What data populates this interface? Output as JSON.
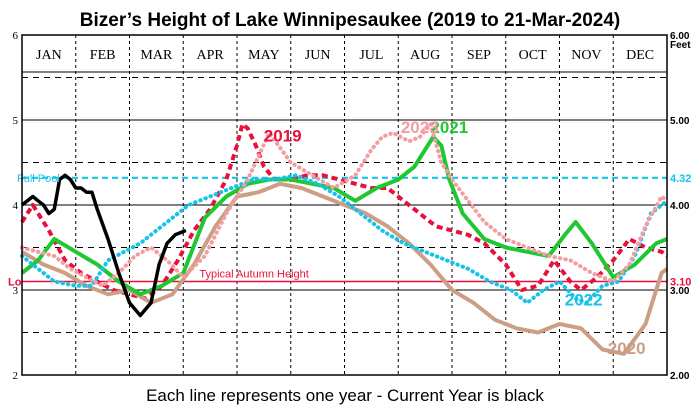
{
  "chart_data": {
    "type": "line",
    "title": "Bizer’s Height of Lake Winnipesaukee (2019  to  21-Mar-2024)",
    "caption": "Each line represents one year - Current Year is black",
    "unit_label": "Feet",
    "months": [
      "JAN",
      "FEB",
      "MAR",
      "APR",
      "MAY",
      "JUN",
      "JUL",
      "AUG",
      "SEP",
      "OCT",
      "NOV",
      "DEC"
    ],
    "x_range": [
      0,
      12
    ],
    "ylim": [
      2,
      6
    ],
    "y_ticks_left": [
      "2",
      "3",
      "4",
      "5",
      "6"
    ],
    "y_ticks_right": [
      "2.00",
      "3.00",
      "4.00",
      "5.00",
      "6.00"
    ],
    "reference_lines": [
      {
        "id": "full",
        "label": "Full Pool",
        "value": 4.32,
        "value_label": "4.32",
        "color": "#16c3e8",
        "style": "dashed"
      },
      {
        "id": "low",
        "label": "Typical Autumn Height",
        "value": 3.1,
        "value_label": "3.10",
        "color": "#e8103c",
        "style": "solid",
        "left_label": "Lo"
      }
    ],
    "series": [
      {
        "name": "2019",
        "color": "#e8103c",
        "style": "dashed",
        "label_at": [
          4.85,
          4.75
        ],
        "x": [
          0,
          0.2,
          0.5,
          0.8,
          1.1,
          1.4,
          1.7,
          2.0,
          2.3,
          2.6,
          2.9,
          3.2,
          3.5,
          3.8,
          4.0,
          4.1,
          4.2,
          4.35,
          4.5,
          4.7,
          5.0,
          5.3,
          5.6,
          5.9,
          6.2,
          6.5,
          6.8,
          7.1,
          7.4,
          7.7,
          8.0,
          8.3,
          8.6,
          9.0,
          9.3,
          9.6,
          9.9,
          10.2,
          10.4,
          10.7,
          11.0,
          11.3,
          11.6,
          11.9,
          12.0
        ],
        "y": [
          3.8,
          4.0,
          3.7,
          3.35,
          3.2,
          3.1,
          3.0,
          2.95,
          2.9,
          3.05,
          3.35,
          3.7,
          3.95,
          4.3,
          4.7,
          4.95,
          4.9,
          4.7,
          4.45,
          4.3,
          4.3,
          4.35,
          4.35,
          4.3,
          4.25,
          4.2,
          4.2,
          4.05,
          3.9,
          3.75,
          3.7,
          3.65,
          3.55,
          3.3,
          3.0,
          3.05,
          3.35,
          3.1,
          3.0,
          3.15,
          3.35,
          3.6,
          3.5,
          3.45,
          3.4
        ]
      },
      {
        "name": "2020",
        "color": "#cc9f85",
        "style": "solid",
        "label_at": [
          11.25,
          2.25
        ],
        "x": [
          0,
          0.4,
          0.8,
          1.2,
          1.6,
          2.0,
          2.4,
          2.8,
          3.2,
          3.6,
          4.0,
          4.4,
          4.8,
          5.2,
          5.6,
          6.0,
          6.4,
          6.8,
          7.2,
          7.6,
          8.0,
          8.4,
          8.8,
          9.2,
          9.6,
          10.0,
          10.4,
          10.8,
          11.2,
          11.6,
          11.9,
          12.0
        ],
        "y": [
          3.45,
          3.3,
          3.2,
          3.05,
          2.95,
          3.0,
          2.85,
          2.95,
          3.3,
          3.75,
          4.1,
          4.15,
          4.25,
          4.2,
          4.1,
          4.0,
          3.9,
          3.75,
          3.55,
          3.3,
          3.0,
          2.85,
          2.65,
          2.55,
          2.5,
          2.6,
          2.55,
          2.3,
          2.25,
          2.6,
          3.2,
          3.25
        ]
      },
      {
        "name": "2021",
        "color": "#1fc832",
        "style": "solid",
        "label_at": [
          7.95,
          4.85
        ],
        "x": [
          0,
          0.3,
          0.6,
          1.0,
          1.4,
          1.8,
          2.2,
          2.6,
          3.0,
          3.4,
          3.8,
          4.2,
          4.6,
          5.0,
          5.4,
          5.8,
          6.2,
          6.6,
          7.0,
          7.3,
          7.5,
          7.65,
          7.8,
          7.95,
          8.2,
          8.6,
          9.0,
          9.4,
          9.8,
          10.1,
          10.3,
          10.6,
          11.0,
          11.4,
          11.8,
          12.0
        ],
        "y": [
          3.2,
          3.35,
          3.6,
          3.45,
          3.3,
          3.1,
          2.95,
          3.05,
          3.2,
          3.85,
          4.1,
          4.25,
          4.3,
          4.3,
          4.25,
          4.2,
          4.05,
          4.2,
          4.3,
          4.45,
          4.65,
          4.8,
          4.7,
          4.3,
          3.9,
          3.6,
          3.5,
          3.45,
          3.4,
          3.65,
          3.8,
          3.55,
          3.15,
          3.3,
          3.55,
          3.6
        ]
      },
      {
        "name": "2022",
        "color": "#16c3e8",
        "style": "dotted",
        "label_at": [
          10.45,
          2.82
        ],
        "x": [
          0,
          0.3,
          0.6,
          1.0,
          1.3,
          1.6,
          1.9,
          2.2,
          2.5,
          2.8,
          3.1,
          3.5,
          3.9,
          4.3,
          4.7,
          5.1,
          5.5,
          5.9,
          6.3,
          6.7,
          7.1,
          7.5,
          7.9,
          8.3,
          8.7,
          9.1,
          9.4,
          9.7,
          10.0,
          10.3,
          10.5,
          10.8,
          11.1,
          11.4,
          11.7,
          12.0
        ],
        "y": [
          3.4,
          3.25,
          3.1,
          3.05,
          3.05,
          3.35,
          3.45,
          3.55,
          3.7,
          3.85,
          4.0,
          4.1,
          4.2,
          4.3,
          4.3,
          4.35,
          4.25,
          4.1,
          3.9,
          3.7,
          3.55,
          3.45,
          3.35,
          3.25,
          3.1,
          3.0,
          2.85,
          3.0,
          3.1,
          2.9,
          2.85,
          3.05,
          3.1,
          3.4,
          3.9,
          4.05
        ]
      },
      {
        "name": "2023",
        "color": "#f29da2",
        "style": "dotted",
        "label_at": [
          7.4,
          4.85
        ],
        "x": [
          0,
          0.3,
          0.6,
          0.9,
          1.2,
          1.5,
          1.8,
          2.1,
          2.4,
          2.7,
          3.0,
          3.4,
          3.8,
          4.2,
          4.6,
          5.0,
          5.4,
          5.8,
          6.2,
          6.5,
          6.7,
          6.9,
          7.2,
          7.4,
          7.6,
          7.8,
          8.0,
          8.3,
          8.6,
          9.0,
          9.4,
          9.8,
          10.2,
          10.6,
          11.0,
          11.3,
          11.6,
          11.9,
          12.0
        ],
        "y": [
          3.5,
          3.45,
          3.4,
          3.25,
          3.15,
          3.05,
          3.2,
          3.4,
          3.5,
          3.35,
          3.15,
          3.4,
          3.9,
          4.3,
          4.85,
          4.5,
          4.35,
          4.2,
          4.35,
          4.65,
          4.8,
          4.85,
          4.75,
          4.8,
          4.95,
          4.5,
          4.3,
          4.05,
          3.8,
          3.6,
          3.5,
          3.4,
          3.35,
          3.2,
          3.1,
          3.3,
          3.75,
          4.1,
          4.05
        ]
      },
      {
        "name": "2024",
        "color": "#000000",
        "style": "solid",
        "label_at": null,
        "x": [
          0,
          0.1,
          0.2,
          0.3,
          0.4,
          0.5,
          0.6,
          0.7,
          0.8,
          0.9,
          1.0,
          1.1,
          1.2,
          1.3,
          1.4,
          1.6,
          1.8,
          2.0,
          2.2,
          2.4,
          2.55,
          2.7,
          2.85,
          3.05
        ],
        "y": [
          4.0,
          4.05,
          4.1,
          4.05,
          4.0,
          3.9,
          3.95,
          4.3,
          4.35,
          4.3,
          4.2,
          4.2,
          4.15,
          4.15,
          3.95,
          3.6,
          3.2,
          2.85,
          2.7,
          2.85,
          3.3,
          3.55,
          3.65,
          3.7
        ]
      }
    ]
  }
}
